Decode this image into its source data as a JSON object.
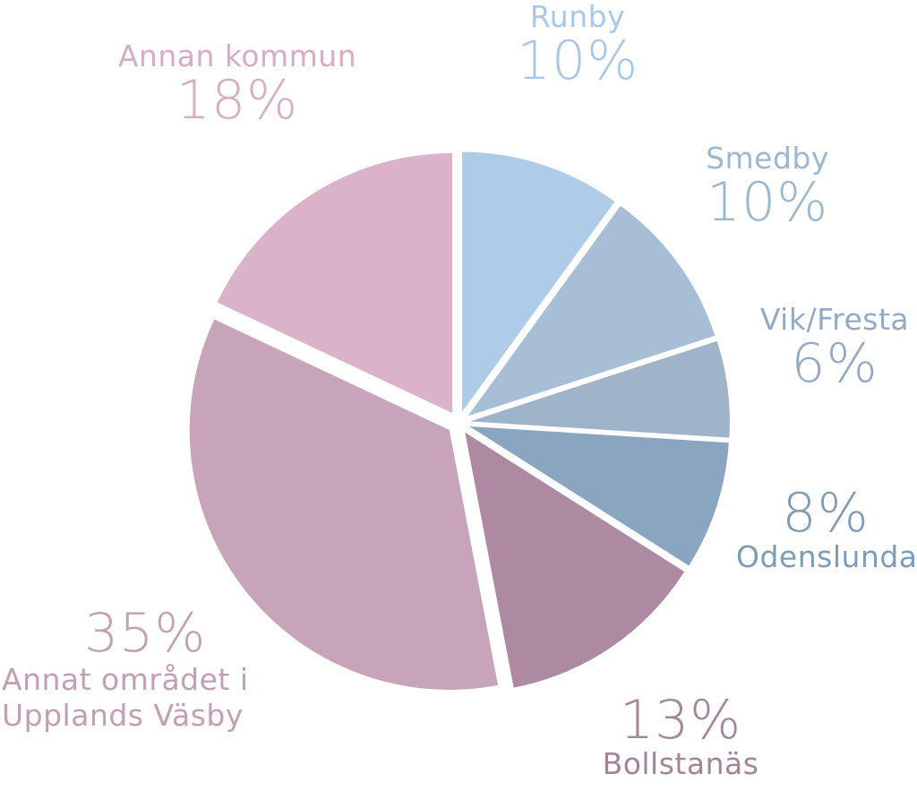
{
  "chart_data": {
    "type": "pie",
    "title": "",
    "slices": [
      {
        "label": "Runby",
        "value": 10,
        "display": "10%",
        "color": "#aecbe8",
        "label_color": "#a9c8e8"
      },
      {
        "label": "Smedby",
        "value": 10,
        "display": "10%",
        "color": "#a6bfd6",
        "label_color": "#9bb8d2"
      },
      {
        "label": "Vik/Fresta",
        "value": 6,
        "display": "6%",
        "color": "#9fb3c9",
        "label_color": "#94aac4"
      },
      {
        "label": "Odenslunda",
        "value": 8,
        "display": "8%",
        "color": "#8aa5bf",
        "label_color": "#7f9cb7"
      },
      {
        "label": "Bollstanäs",
        "value": 13,
        "display": "13%",
        "color": "#ad8aa2",
        "label_color": "#a3849b"
      },
      {
        "label": "Annat området i\nUpplands Väsby",
        "value": 35,
        "display": "35%",
        "color": "#c8a4bb",
        "label_color": "#c39fb6"
      },
      {
        "label": "Annan kommun",
        "value": 18,
        "display": "18%",
        "color": "#dab3c9",
        "label_color": "#d8acc5"
      }
    ],
    "legend": "none"
  }
}
